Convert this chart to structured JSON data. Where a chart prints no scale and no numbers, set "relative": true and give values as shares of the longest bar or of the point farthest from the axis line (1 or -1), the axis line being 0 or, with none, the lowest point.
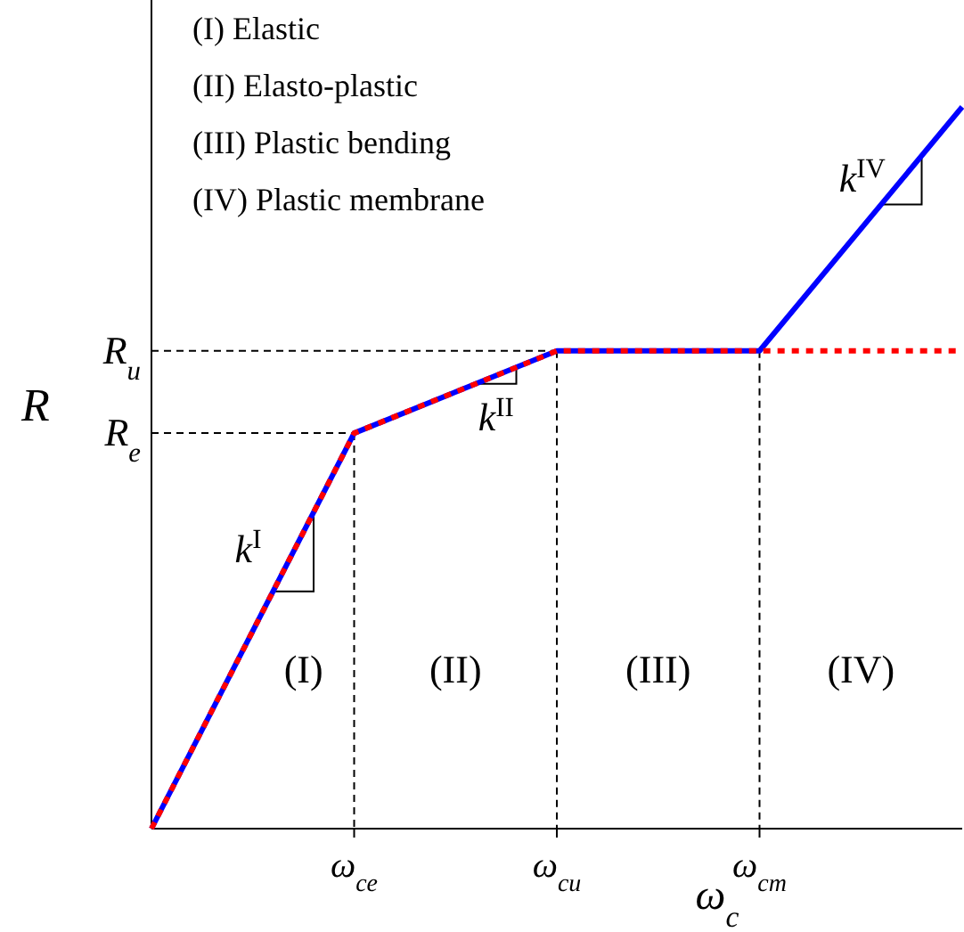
{
  "chart_data": {
    "type": "line",
    "relative": true,
    "xlabel": "ω$_{c}$",
    "ylabel": "R",
    "categories": [
      null,
      "ω$_{ce}$",
      "ω$_{cu}$",
      "ω$_{cm}$",
      null
    ],
    "series": [
      {
        "color": "#0000ff",
        "line_style": "solid",
        "values": [
          0,
          0.548,
          0.662,
          0.662,
          1
        ]
      },
      {
        "color": "#ff0000",
        "line_style": "dotted",
        "values": [
          0,
          0.548,
          0.662,
          0.662,
          0.662
        ]
      }
    ],
    "ref_lines": [
      {
        "axis": "x",
        "value": "ω$_{ce}$",
        "line_style": "dashed",
        "color": "#000000"
      },
      {
        "axis": "x",
        "value": "ω$_{cu}$",
        "line_style": "dashed",
        "color": "#000000"
      },
      {
        "axis": "x",
        "value": "ω$_{cm}$",
        "line_style": "dashed",
        "color": "#000000"
      },
      {
        "axis": "y",
        "value": 0.548,
        "line_style": "dashed",
        "color": "#000000"
      },
      {
        "axis": "y",
        "value": 0.662,
        "line_style": "dashed",
        "color": "#000000"
      }
    ],
    "annotations": [
      "(I) Elastic",
      "(II) Elasto-plastic",
      "(III) Plastic bending",
      "(IV) Plastic membrane",
      "R$_{e}$",
      "R$_{u}$",
      "k$^{I}$",
      "k$^{II}$",
      "k$^{IV}$",
      "(I)",
      "(II)",
      "(III)",
      "(IV)"
    ]
  }
}
